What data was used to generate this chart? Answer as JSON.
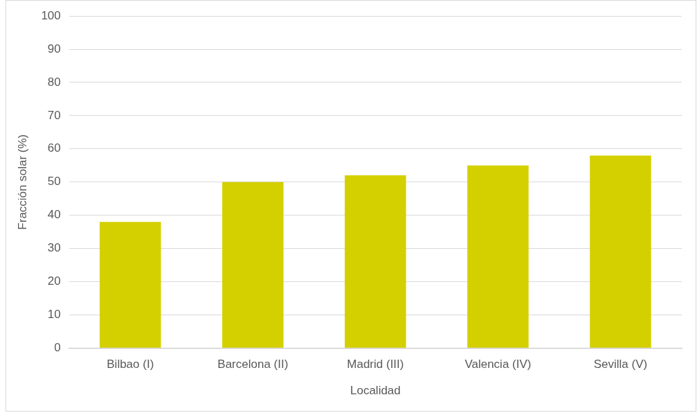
{
  "chart_data": {
    "type": "bar",
    "xlabel": "Localidad",
    "ylabel": "Fracción solar (%)",
    "categories": [
      "Bilbao (I)",
      "Barcelona (II)",
      "Madrid (III)",
      "Valencia (IV)",
      "Sevilla (V)"
    ],
    "values": [
      38,
      50,
      52,
      55,
      58
    ],
    "color": "#d4d000",
    "ylim": [
      0,
      100
    ],
    "yticks": [
      0,
      10,
      20,
      30,
      40,
      50,
      60,
      70,
      80,
      90,
      100
    ],
    "grid": "y",
    "legend": false
  }
}
